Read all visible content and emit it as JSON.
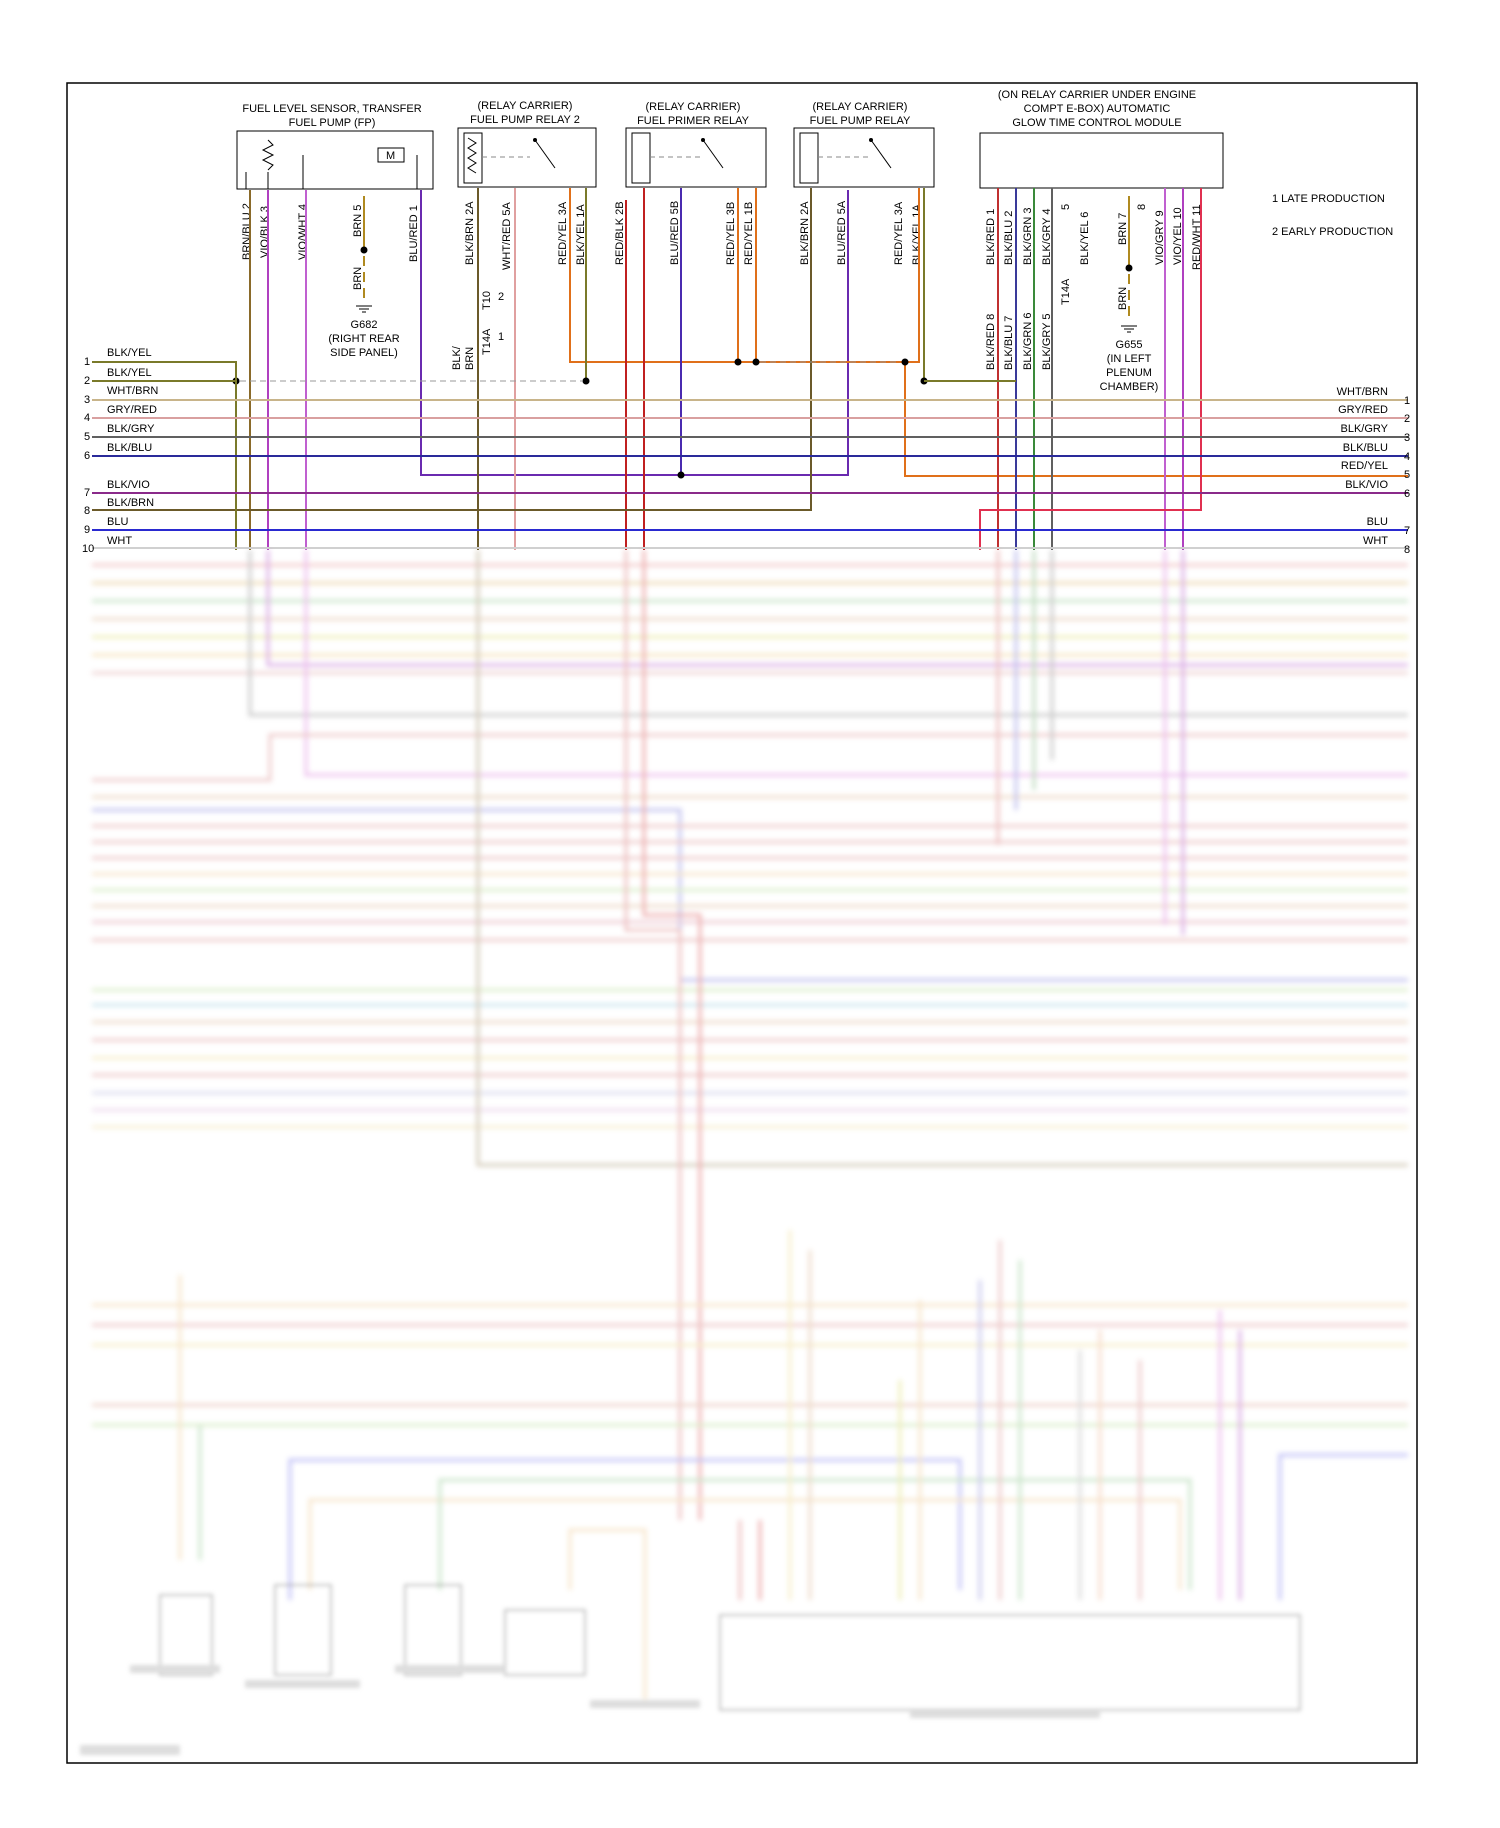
{
  "top_components": [
    {
      "name": "fuel-pump",
      "lines": [
        "FUEL LEVEL SENSOR, TRANSFER",
        "FUEL PUMP (FP)"
      ],
      "pins": [
        "BRN/BLU 2",
        "VIO/BLK 3",
        "VIO/WHT 4",
        "BRN 5",
        "BLU/RED 1"
      ]
    },
    {
      "name": "fuel-pump-relay-2",
      "lines": [
        "(RELAY CARRIER)",
        "FUEL PUMP RELAY 2"
      ],
      "pins": [
        "BLK/BRN 2A",
        "WHT/RED 5A",
        "RED/YEL 3A",
        "BLK/YEL 1A"
      ]
    },
    {
      "name": "fuel-primer-relay",
      "lines": [
        "(RELAY CARRIER)",
        "FUEL PRIMER RELAY"
      ],
      "pins": [
        "RED/BLK 2B",
        "BLU/RED 5B",
        "RED/YEL 3B",
        "RED/YEL 1B"
      ]
    },
    {
      "name": "fuel-pump-relay",
      "lines": [
        "(RELAY CARRIER)",
        "FUEL PUMP RELAY"
      ],
      "pins": [
        "BLK/BRN 2A",
        "BLU/RED 5A",
        "RED/YEL 3A",
        "BLK/YEL 1A"
      ]
    },
    {
      "name": "glow-time-module",
      "lines": [
        "(ON RELAY CARRIER UNDER ENGINE",
        "COMPT E-BOX) AUTOMATIC",
        "GLOW TIME CONTROL MODULE"
      ],
      "pins": [
        "BLK/RED 1",
        "BLK/BLU 2",
        "BLK/GRN 3",
        "BLK/GRY 4",
        "5",
        "BLK/YEL 6",
        "BRN 7",
        "8",
        "VIO/GRY 9",
        "VIO/YEL 10",
        "RED/WHT 11"
      ]
    }
  ],
  "legend": [
    "1  LATE PRODUCTION",
    "2  EARLY PRODUCTION"
  ],
  "grounds": {
    "g682": {
      "wire_upper": "BRN",
      "wire_lower": "BRN",
      "lines": [
        "G682",
        "(RIGHT REAR",
        "SIDE PANEL)"
      ]
    },
    "g655": {
      "wire": "BRN",
      "lines": [
        "G655",
        "(IN LEFT",
        "PLENUM",
        "CHAMBER)"
      ]
    }
  },
  "connectors": {
    "t10": "T10",
    "t14a_left": "T14A",
    "t14a_right": "T14A",
    "pin_1": "1",
    "pin_2": "2",
    "blk_brn_split": [
      "BLK/",
      "BRN"
    ],
    "glow_lower_pins": [
      "BLK/RED 8",
      "BLK/BLU 7",
      "BLK/GRN 6",
      "BLK/GRY 5"
    ]
  },
  "left_bus": [
    {
      "num": "1",
      "label": "BLK/YEL"
    },
    {
      "num": "2",
      "label": "BLK/YEL"
    },
    {
      "num": "",
      "label": "WHT/BRN"
    },
    {
      "num": "3",
      "label": ""
    },
    {
      "num": "",
      "label": "GRY/RED"
    },
    {
      "num": "4",
      "label": ""
    },
    {
      "num": "5",
      "label": "BLK/GRY"
    },
    {
      "num": "6",
      "label": "BLK/BLU"
    },
    {
      "num": "",
      "label": "BLK/VIO"
    },
    {
      "num": "7",
      "label": ""
    },
    {
      "num": "8",
      "label": "BLK/BRN"
    },
    {
      "num": "9",
      "label": "BLU"
    },
    {
      "num": "10",
      "label": "WHT"
    }
  ],
  "right_bus": [
    {
      "num": "1",
      "label": "WHT/BRN"
    },
    {
      "num": "2",
      "label": "GRY/RED"
    },
    {
      "num": "3",
      "label": "BLK/GRY"
    },
    {
      "num": "4",
      "label": "BLK/BLU"
    },
    {
      "num": "5",
      "label": "RED/YEL"
    },
    {
      "num": "6",
      "label": "BLK/VIO"
    },
    {
      "num": "7",
      "label": "BLU"
    },
    {
      "num": "8",
      "label": "WHT"
    }
  ],
  "colors": {
    "blk_yel": "#7a7a2a",
    "wht_brn": "#c8b48a",
    "gry_red": "#d9a0a0",
    "blk_gry": "#606060",
    "blk_blu": "#2a2a9a",
    "blk_vio": "#8a2a8a",
    "blk_brn": "#6b5a2a",
    "blu": "#2a2ad0",
    "brn": "#9a6a1a",
    "red_yel": "#e0701a",
    "red_blk": "#c02020",
    "vio": "#b040c0",
    "blk_grn": "#3a8a3a",
    "red_wht": "#e05080",
    "pink": "#e890c0"
  }
}
